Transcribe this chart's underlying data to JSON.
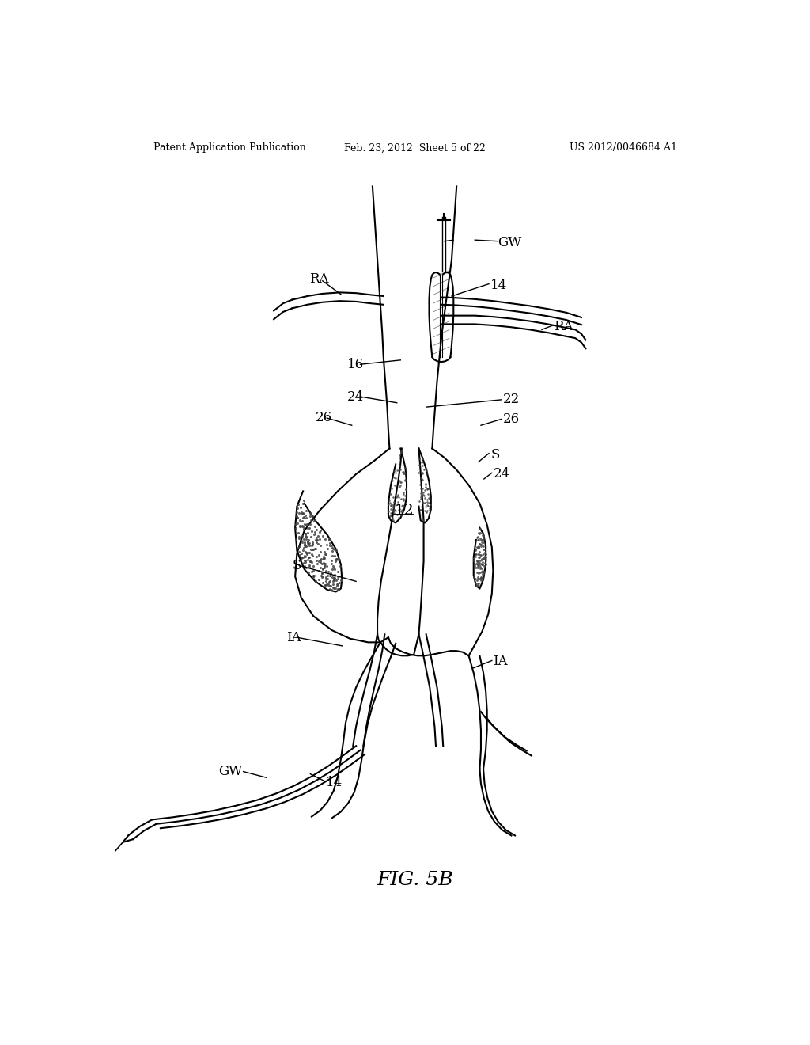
{
  "background_color": "#ffffff",
  "line_color": "#000000",
  "header_left": "Patent Application Publication",
  "header_center": "Feb. 23, 2012  Sheet 5 of 22",
  "header_right": "US 2012/0046684 A1",
  "fig_label": "FIG. 5B"
}
